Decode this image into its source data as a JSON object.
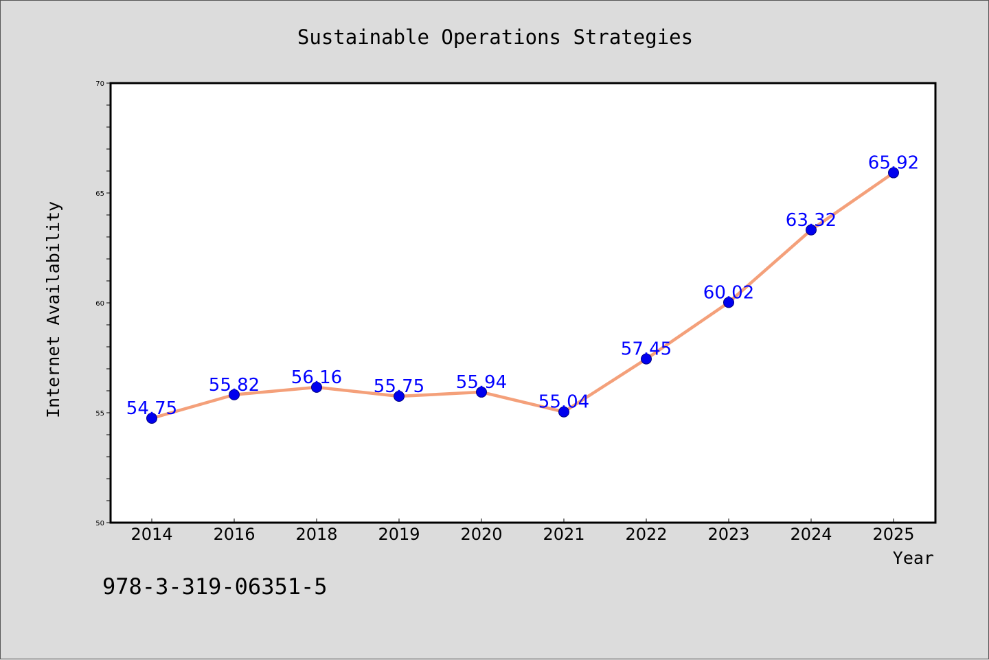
{
  "colors": {
    "background": "#dcdcdc",
    "plot_background": "#ffffff",
    "line": "#f4a07a",
    "marker": "#0000ee",
    "data_label": "#0000ff"
  },
  "isbn": "978-3-319-06351-5",
  "chart_data": {
    "type": "line",
    "title": "Sustainable Operations Strategies",
    "xlabel": "Year",
    "ylabel": "Internet Availability",
    "categories": [
      "2014",
      "2016",
      "2018",
      "2019",
      "2020",
      "2021",
      "2022",
      "2023",
      "2024",
      "2025"
    ],
    "series": [
      {
        "values": [
          54.75,
          55.82,
          56.16,
          55.75,
          55.94,
          55.04,
          57.45,
          60.02,
          63.32,
          65.92
        ],
        "labels": [
          "54.75",
          "55.82",
          "56.16",
          "55.75",
          "55.94",
          "55.04",
          "57.45",
          "60.02",
          "63.32",
          "65.92"
        ]
      }
    ],
    "ylim": [
      50,
      70
    ],
    "yticks": [
      "50",
      "55",
      "60",
      "65",
      "70"
    ],
    "grid": false,
    "marker": "circle"
  }
}
